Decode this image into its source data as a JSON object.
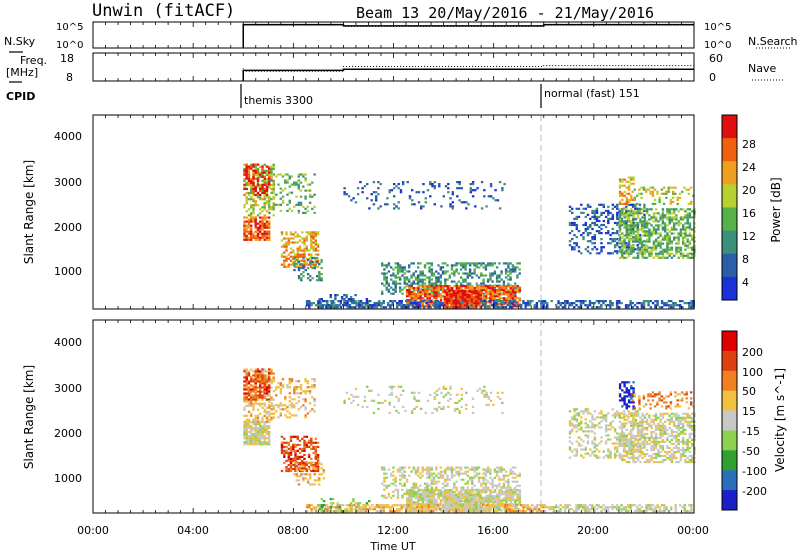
{
  "header": {
    "station": "Unwin (fitACF)",
    "beam_info": "Beam 13 20/May/2016 - 21/May/2016"
  },
  "summary": {
    "nsky_label": "N.Sky",
    "nsearch_label": "N.Search",
    "freq_label": "Freq.",
    "freq_unit": "[MHz]",
    "nave_label": "Nave",
    "cpid_label": "CPID",
    "nsky_ticks": [
      "10^5",
      "10^0"
    ],
    "nsearch_ticks": [
      "10^5",
      "10^0"
    ],
    "freq_ticks": [
      "18",
      "8"
    ],
    "nave_ticks": [
      "60",
      "0"
    ],
    "cpid_segments": [
      {
        "start_hour": 6,
        "label": "themis 3300"
      },
      {
        "start_hour": 18,
        "label": "normal (fast) 151"
      }
    ],
    "nsky_steps": [
      [
        6,
        0.82
      ],
      [
        10,
        0.9
      ],
      [
        18,
        0.85
      ],
      [
        24,
        0.9
      ]
    ],
    "freq_steps": [
      [
        6,
        0.35
      ],
      [
        10,
        0.38
      ],
      [
        18,
        0.42
      ],
      [
        24,
        0.42
      ]
    ],
    "nave_steps": [
      [
        6,
        0.45
      ],
      [
        10,
        0.35
      ],
      [
        18,
        0.52
      ],
      [
        24,
        0.55
      ]
    ]
  },
  "chart_data": [
    {
      "type": "heatmap",
      "name": "power",
      "ylabel": "Slant Range [km]",
      "xlim_hours": [
        0,
        24
      ],
      "ylim": [
        180,
        4500
      ],
      "yticks": [
        "4000",
        "3000",
        "2000",
        "1000"
      ],
      "colorbar_label": "Power [dB]",
      "colorbar_ticks": [
        "28",
        "24",
        "20",
        "16",
        "12",
        "8",
        "4"
      ],
      "colors": [
        "#1a30d8",
        "#2a5fa8",
        "#3c8f7a",
        "#58b048",
        "#b8d030",
        "#f0a020",
        "#f06010",
        "#e01010"
      ]
    },
    {
      "type": "heatmap",
      "name": "velocity",
      "ylabel": "Slant Range [km]",
      "xlim_hours": [
        0,
        24
      ],
      "ylim": [
        180,
        4500
      ],
      "yticks": [
        "4000",
        "3000",
        "2000",
        "1000"
      ],
      "colorbar_label": "Velocity [m s^-1]",
      "colorbar_ticks": [
        "200",
        "100",
        "50",
        "15",
        "-15",
        "-50",
        "-100",
        "-200"
      ],
      "colors": [
        "#1a20c8",
        "#2a70b8",
        "#30a030",
        "#90d050",
        "#c8c8c8",
        "#f0c040",
        "#f08020",
        "#e04010",
        "#e00000"
      ]
    }
  ],
  "xaxis": {
    "ticks": [
      "00:00",
      "04:00",
      "08:00",
      "12:00",
      "16:00",
      "20:00",
      "00:00"
    ],
    "label": "Time UT"
  }
}
